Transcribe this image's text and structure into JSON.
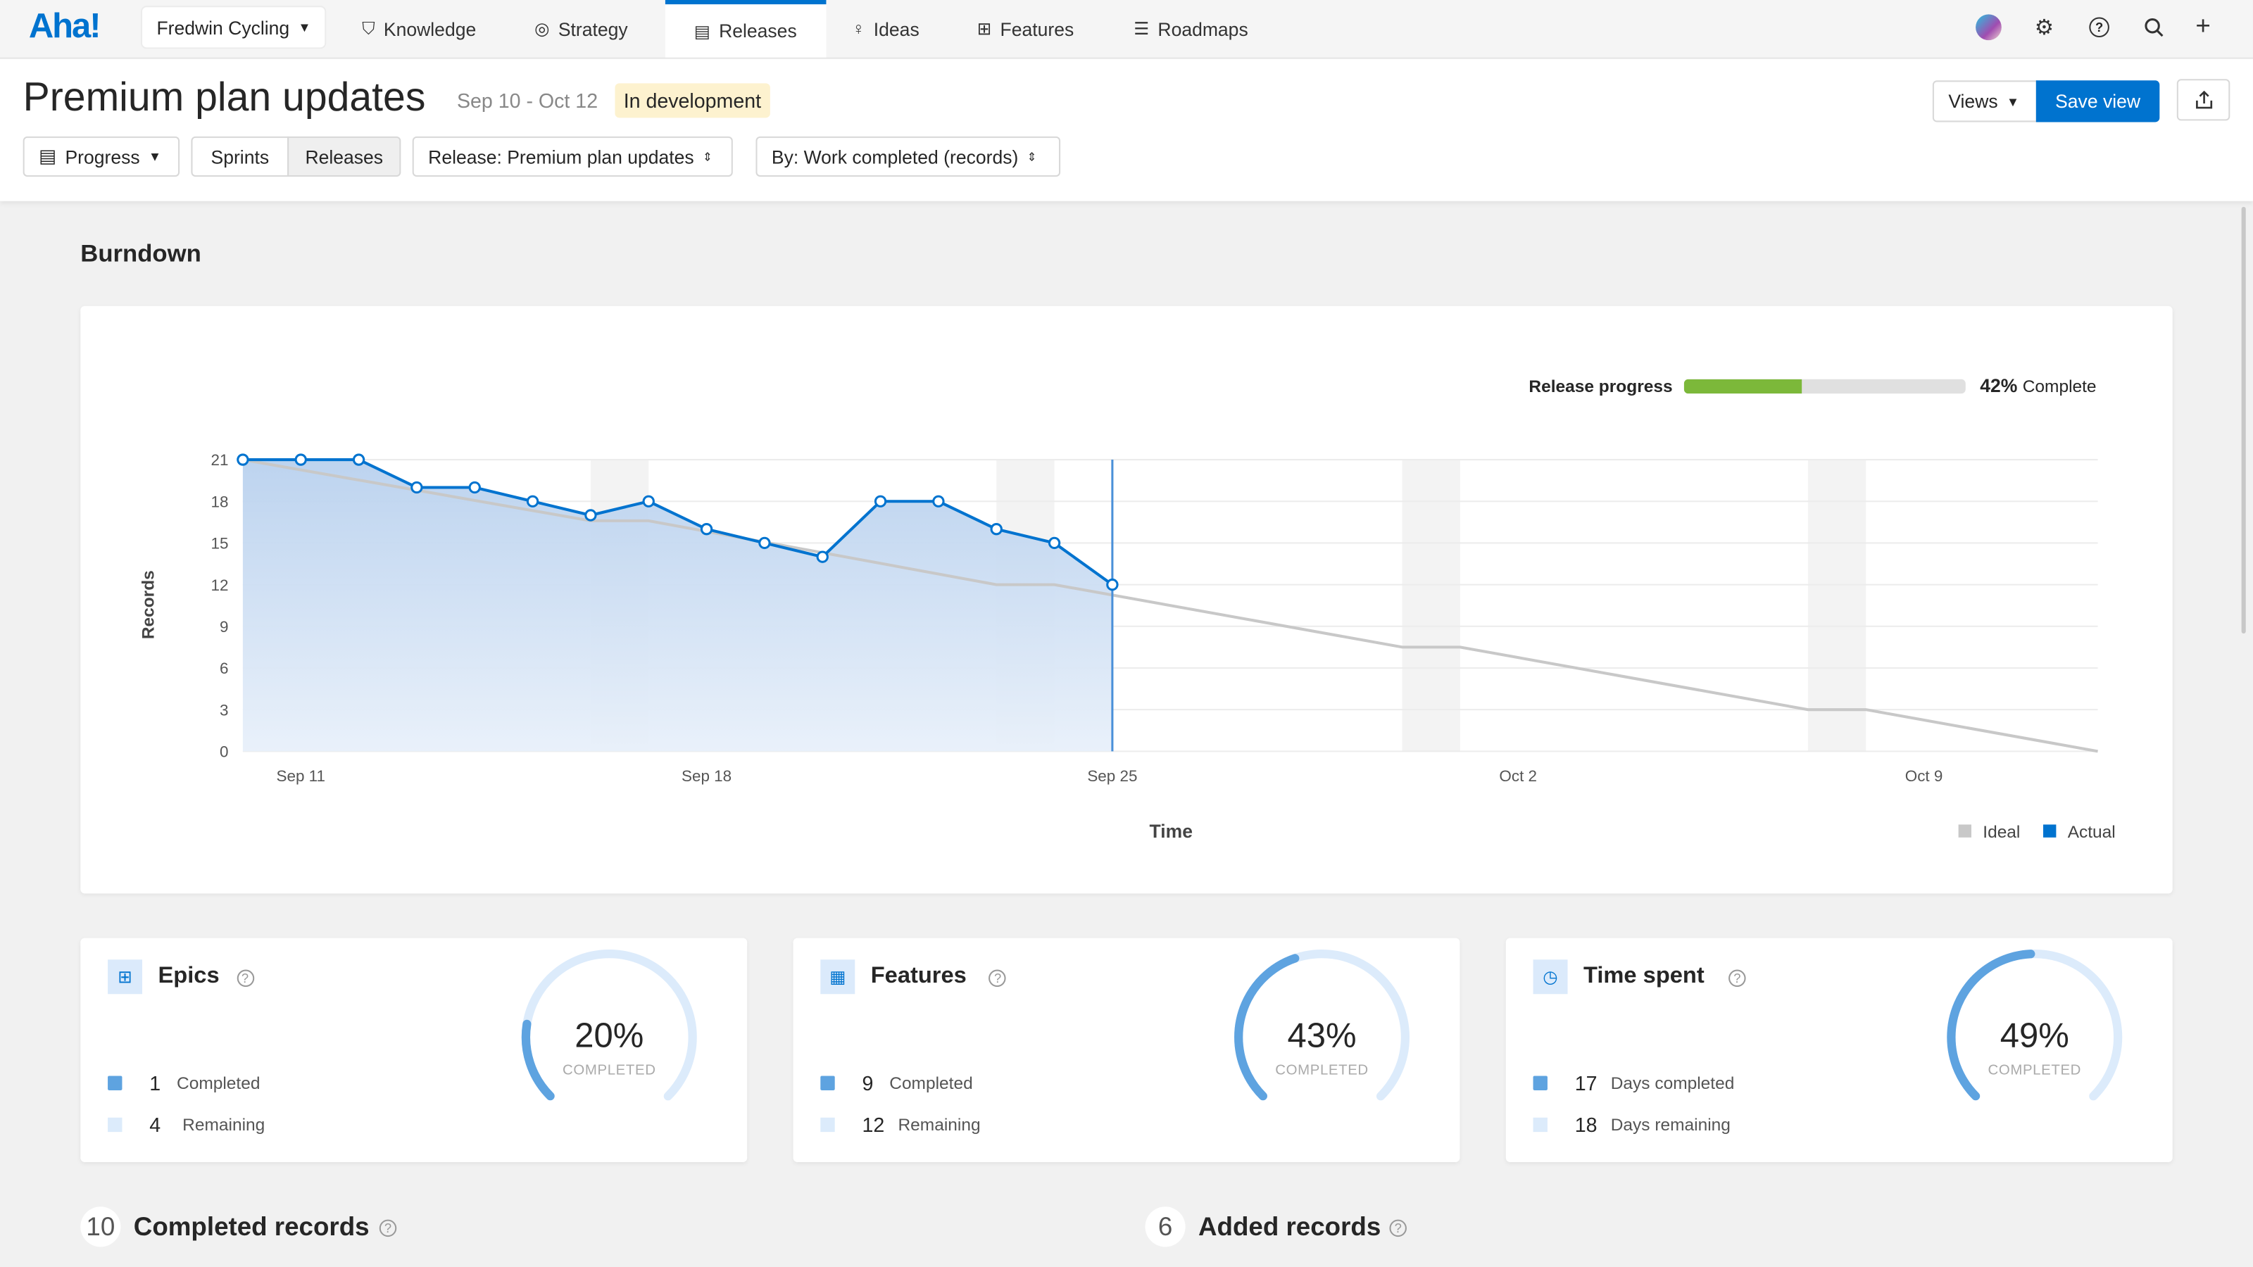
{
  "nav": {
    "logo": "Aha!",
    "workspace": "Fredwin Cycling",
    "items": [
      {
        "label": "Knowledge",
        "icon": "knowledge-icon"
      },
      {
        "label": "Strategy",
        "icon": "target-icon"
      },
      {
        "label": "Releases",
        "icon": "calendar-icon",
        "active": true
      },
      {
        "label": "Ideas",
        "icon": "lightbulb-icon"
      },
      {
        "label": "Features",
        "icon": "grid-icon"
      },
      {
        "label": "Roadmaps",
        "icon": "roadmap-icon"
      }
    ],
    "right_icons": [
      "avatar",
      "gear-icon",
      "help-icon",
      "search-icon",
      "plus-icon"
    ]
  },
  "header": {
    "title": "Premium plan updates",
    "dates": "Sep 10 - Oct 12",
    "status": "In development",
    "progress_button": "Progress",
    "sprints": "Sprints",
    "releases": "Releases",
    "release_select": "Release: Premium plan updates",
    "by_select": "By: Work completed (records)",
    "views": "Views",
    "save_view": "Save view"
  },
  "burndown": {
    "title": "Burndown",
    "release_progress_label": "Release progress",
    "release_progress_pct": 42,
    "release_progress_text": "42%",
    "complete_label": "Complete"
  },
  "chart_data": {
    "type": "line",
    "ylabel": "Records",
    "xlabel": "Time",
    "ylim": [
      0,
      21
    ],
    "yticks": [
      "0",
      "3",
      "6",
      "9",
      "12",
      "15",
      "18",
      "21"
    ],
    "xlim": [
      "Sep 10",
      "Oct 12"
    ],
    "xticks": [
      "Sep 11",
      "Sep 18",
      "Sep 25",
      "Oct 2",
      "Oct 9"
    ],
    "grid": true,
    "legend": "bottom-right",
    "today": "Sep 25",
    "non_working_days": [
      [
        "Sep 16",
        "Sep 17"
      ],
      [
        "Sep 23",
        "Sep 24"
      ],
      [
        "Sep 30",
        "Oct 1"
      ],
      [
        "Oct 7",
        "Oct 8"
      ]
    ],
    "series": [
      {
        "name": "Ideal",
        "color": "#c8c8c8",
        "points": [
          [
            "Sep 10",
            21
          ],
          [
            "Sep 16",
            16.6
          ],
          [
            "Sep 17",
            16.6
          ],
          [
            "Sep 23",
            12
          ],
          [
            "Sep 24",
            12
          ],
          [
            "Sep 30",
            7.5
          ],
          [
            "Oct 1",
            7.5
          ],
          [
            "Oct 7",
            3
          ],
          [
            "Oct 8",
            3
          ],
          [
            "Oct 12",
            0
          ]
        ]
      },
      {
        "name": "Actual",
        "color": "#0073cf",
        "points": [
          [
            "Sep 10",
            21
          ],
          [
            "Sep 11",
            21
          ],
          [
            "Sep 12",
            21
          ],
          [
            "Sep 13",
            19
          ],
          [
            "Sep 14",
            19
          ],
          [
            "Sep 15",
            18
          ],
          [
            "Sep 16",
            17
          ],
          [
            "Sep 17",
            18
          ],
          [
            "Sep 18",
            16
          ],
          [
            "Sep 19",
            15
          ],
          [
            "Sep 20",
            14
          ],
          [
            "Sep 21",
            18
          ],
          [
            "Sep 22",
            18
          ],
          [
            "Sep 23",
            16
          ],
          [
            "Sep 24",
            15
          ],
          [
            "Sep 25",
            12
          ]
        ]
      }
    ]
  },
  "stats": [
    {
      "title": "Epics",
      "icon": "epic-icon",
      "pct": 20,
      "pct_text": "20%",
      "sub": "COMPLETED",
      "rows": [
        {
          "n": "1",
          "label": "Completed"
        },
        {
          "n": "4",
          "label": "Remaining"
        }
      ]
    },
    {
      "title": "Features",
      "icon": "features-icon",
      "pct": 43,
      "pct_text": "43%",
      "sub": "COMPLETED",
      "rows": [
        {
          "n": "9",
          "label": "Completed"
        },
        {
          "n": "12",
          "label": "Remaining"
        }
      ]
    },
    {
      "title": "Time spent",
      "icon": "clock-icon",
      "pct": 49,
      "pct_text": "49%",
      "sub": "COMPLETED",
      "rows": [
        {
          "n": "17",
          "label": "Days completed"
        },
        {
          "n": "18",
          "label": "Days remaining"
        }
      ]
    }
  ],
  "bottom": {
    "completed_count": "10",
    "completed_label": "Completed records",
    "added_count": "6",
    "added_label": "Added records"
  },
  "colors": {
    "accent": "#0073cf",
    "progress": "#7cb83a",
    "status_bg": "#fdf2cf"
  }
}
